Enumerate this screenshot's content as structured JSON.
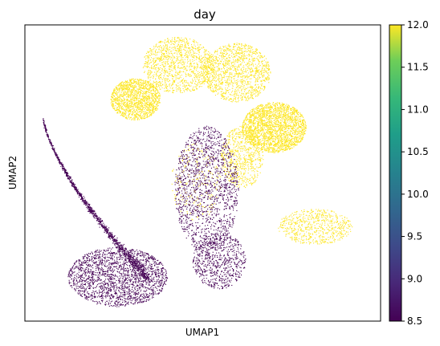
{
  "chart_data": {
    "type": "scatter",
    "title": "day",
    "xlabel": "UMAP1",
    "ylabel": "UMAP2",
    "x_ticks_shown": false,
    "y_ticks_shown": false,
    "grid": false,
    "legend": "none",
    "colorbar": {
      "placement": "right",
      "colormap": "viridis",
      "min": 8.5,
      "max": 12.0,
      "ticks": [
        "8.5",
        "9.0",
        "9.5",
        "10.0",
        "10.5",
        "11.0",
        "11.5",
        "12.0"
      ]
    },
    "series": [
      {
        "value": 8.5,
        "color": "#440154"
      },
      {
        "value": 12.0,
        "color": "#fde725"
      }
    ],
    "clusters": [
      {
        "value": 12.0,
        "x": [
          0.24,
          0.38
        ],
        "y": [
          0.68,
          0.82
        ],
        "n": 1400
      },
      {
        "value": 12.0,
        "x": [
          0.33,
          0.53
        ],
        "y": [
          0.77,
          0.96
        ],
        "n": 1200
      },
      {
        "value": 12.0,
        "x": [
          0.5,
          0.69
        ],
        "y": [
          0.74,
          0.94
        ],
        "n": 1300
      },
      {
        "value": 12.0,
        "x": [
          0.61,
          0.79
        ],
        "y": [
          0.57,
          0.74
        ],
        "n": 2200
      },
      {
        "value": 12.0,
        "x": [
          0.55,
          0.67
        ],
        "y": [
          0.45,
          0.66
        ],
        "n": 700
      },
      {
        "value": 12.0,
        "x": [
          0.71,
          0.92
        ],
        "y": [
          0.26,
          0.38
        ],
        "n": 650
      },
      {
        "value": 12.0,
        "x": [
          0.41,
          0.55
        ],
        "y": [
          0.34,
          0.6
        ],
        "n": 220
      },
      {
        "value": 8.5,
        "x": [
          0.42,
          0.6
        ],
        "y": [
          0.23,
          0.66
        ],
        "n": 1500
      },
      {
        "value": 8.5,
        "x": [
          0.47,
          0.62
        ],
        "y": [
          0.11,
          0.3
        ],
        "n": 700
      },
      {
        "value": 8.5,
        "x": [
          0.12,
          0.4
        ],
        "y": [
          0.05,
          0.25
        ],
        "n": 2000
      }
    ]
  }
}
